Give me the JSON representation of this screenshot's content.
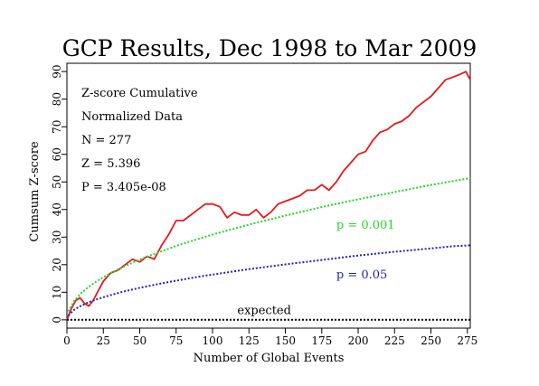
{
  "chart_data": {
    "type": "line",
    "title": "GCP Results, Dec 1998 to Mar 2009",
    "xlabel": "Number of Global Events",
    "ylabel": "Cumsum Z-score",
    "xlim": [
      0,
      277
    ],
    "ylim": [
      -3,
      93
    ],
    "xticks": [
      0,
      25,
      50,
      75,
      100,
      125,
      150,
      175,
      200,
      225,
      250,
      275
    ],
    "yticks": [
      0,
      10,
      20,
      30,
      40,
      50,
      60,
      70,
      80,
      90
    ],
    "grid": false,
    "stats": [
      "Z-score Cumulative",
      "Normalized Data",
      "N = 277",
      "Z = 5.396",
      "P = 3.405e-08"
    ],
    "series": [
      {
        "name": "",
        "color": "#e41a1c",
        "x": [
          0,
          3,
          6,
          9,
          12,
          15,
          18,
          21,
          25,
          30,
          35,
          40,
          45,
          50,
          55,
          60,
          65,
          70,
          75,
          80,
          85,
          90,
          95,
          100,
          105,
          110,
          115,
          120,
          125,
          130,
          135,
          140,
          145,
          150,
          155,
          160,
          165,
          170,
          175,
          180,
          185,
          190,
          195,
          200,
          205,
          210,
          215,
          220,
          225,
          230,
          235,
          240,
          245,
          250,
          255,
          260,
          265,
          270,
          274,
          277
        ],
        "y": [
          0,
          4,
          7,
          8,
          6,
          5,
          7,
          10,
          14,
          17,
          18,
          20,
          22,
          21,
          23,
          22,
          27,
          31,
          36,
          36,
          38,
          40,
          42,
          42,
          41,
          37,
          39,
          38,
          38,
          40,
          37,
          39,
          42,
          43,
          44,
          45,
          47,
          47,
          49,
          47,
          50,
          54,
          57,
          60,
          61,
          65,
          68,
          69,
          71,
          72,
          74,
          77,
          79,
          81,
          84,
          87,
          88,
          89,
          90,
          87
        ]
      },
      {
        "name": "",
        "color": "#27d627",
        "x": [
          1,
          5,
          10,
          15,
          20,
          25,
          30,
          40,
          50,
          60,
          75,
          90,
          100,
          125,
          150,
          175,
          200,
          225,
          250,
          277
        ],
        "y": [
          3.1,
          6.9,
          9.8,
          12.0,
          13.8,
          15.5,
          16.9,
          19.5,
          21.9,
          23.9,
          26.8,
          29.3,
          30.9,
          34.5,
          37.8,
          40.9,
          43.7,
          46.3,
          48.9,
          51.4
        ]
      },
      {
        "name": "",
        "color": "#2323b8",
        "x": [
          1,
          5,
          10,
          15,
          20,
          25,
          30,
          40,
          50,
          60,
          75,
          90,
          100,
          125,
          150,
          175,
          200,
          225,
          250,
          265,
          277
        ],
        "y": [
          1.6,
          3.7,
          5.2,
          6.4,
          7.4,
          8.2,
          9.0,
          10.4,
          11.6,
          12.7,
          14.2,
          15.6,
          16.4,
          18.4,
          20.1,
          21.7,
          23.3,
          24.7,
          25.9,
          26.7,
          27.0
        ]
      },
      {
        "name": "",
        "color": "#000000",
        "x": [
          0,
          277
        ],
        "y": [
          0,
          0
        ]
      }
    ],
    "annotations": [
      {
        "text": "p = 0.001",
        "x": 185,
        "y": 33,
        "color": "#27d627"
      },
      {
        "text": "p = 0.05",
        "x": 185,
        "y": 15,
        "color": "#2323b8"
      },
      {
        "text": "expected",
        "x": 117,
        "y": 2,
        "color": "#000000"
      }
    ]
  }
}
